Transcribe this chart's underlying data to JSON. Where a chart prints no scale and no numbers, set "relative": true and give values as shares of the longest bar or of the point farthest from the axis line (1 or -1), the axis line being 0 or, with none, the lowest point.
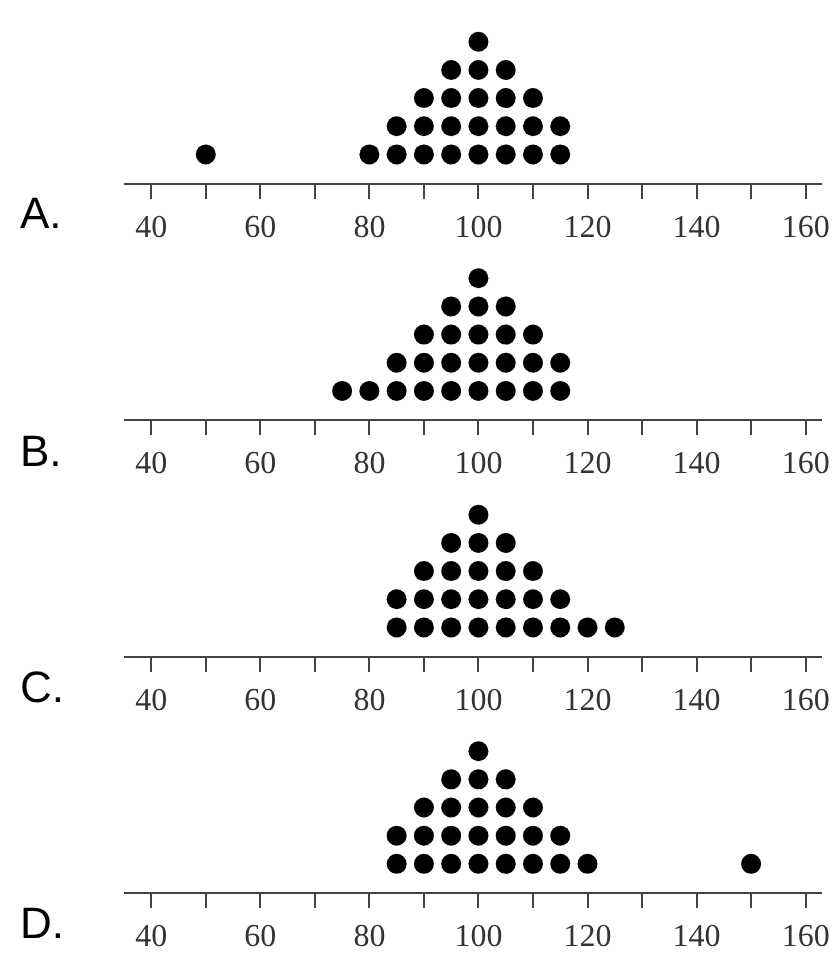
{
  "chart_data": [
    {
      "type": "scatter",
      "title": "A.",
      "relative": true,
      "marker": "circle",
      "tick_labels": "x",
      "xlim": [
        35,
        163
      ],
      "xticks": [
        40,
        {
          "value": 50,
          "label": null
        },
        60,
        {
          "value": 70,
          "label": null
        },
        80,
        {
          "value": 90,
          "label": null
        },
        100,
        {
          "value": 110,
          "label": null
        },
        120,
        {
          "value": 130,
          "label": null
        },
        140,
        {
          "value": 150,
          "label": null
        },
        160
      ],
      "series": [
        {
          "color": "#000000",
          "x": [
            50,
            80,
            85,
            85,
            90,
            90,
            90,
            95,
            95,
            95,
            95,
            100,
            100,
            100,
            100,
            100,
            105,
            105,
            105,
            105,
            110,
            110,
            110,
            115,
            115
          ],
          "values": [
            0.2,
            0.2,
            0.2,
            0.4,
            0.2,
            0.4,
            0.6,
            0.2,
            0.4,
            0.6,
            0.8,
            0.2,
            0.4,
            0.6,
            0.8,
            1,
            0.2,
            0.4,
            0.6,
            0.8,
            0.2,
            0.4,
            0.6,
            0.2,
            0.4
          ]
        }
      ]
    },
    {
      "type": "scatter",
      "title": "B.",
      "relative": true,
      "marker": "circle",
      "tick_labels": "x",
      "xlim": [
        35,
        163
      ],
      "xticks": [
        40,
        {
          "value": 50,
          "label": null
        },
        60,
        {
          "value": 70,
          "label": null
        },
        80,
        {
          "value": 90,
          "label": null
        },
        100,
        {
          "value": 110,
          "label": null
        },
        120,
        {
          "value": 130,
          "label": null
        },
        140,
        {
          "value": 150,
          "label": null
        },
        160
      ],
      "series": [
        {
          "color": "#000000",
          "x": [
            75,
            80,
            85,
            85,
            90,
            90,
            90,
            95,
            95,
            95,
            95,
            100,
            100,
            100,
            100,
            100,
            105,
            105,
            105,
            105,
            110,
            110,
            110,
            115,
            115
          ],
          "values": [
            0.2,
            0.2,
            0.2,
            0.4,
            0.2,
            0.4,
            0.6,
            0.2,
            0.4,
            0.6,
            0.8,
            0.2,
            0.4,
            0.6,
            0.8,
            1,
            0.2,
            0.4,
            0.6,
            0.8,
            0.2,
            0.4,
            0.6,
            0.2,
            0.4
          ]
        }
      ]
    },
    {
      "type": "scatter",
      "title": "C.",
      "relative": true,
      "marker": "circle",
      "tick_labels": "x",
      "xlim": [
        35,
        163
      ],
      "xticks": [
        40,
        {
          "value": 50,
          "label": null
        },
        60,
        {
          "value": 70,
          "label": null
        },
        80,
        {
          "value": 90,
          "label": null
        },
        100,
        {
          "value": 110,
          "label": null
        },
        120,
        {
          "value": 130,
          "label": null
        },
        140,
        {
          "value": 150,
          "label": null
        },
        160
      ],
      "series": [
        {
          "color": "#000000",
          "x": [
            85,
            85,
            90,
            90,
            90,
            95,
            95,
            95,
            95,
            100,
            100,
            100,
            100,
            100,
            105,
            105,
            105,
            105,
            110,
            110,
            110,
            115,
            115,
            120,
            125
          ],
          "values": [
            0.2,
            0.4,
            0.2,
            0.4,
            0.6,
            0.2,
            0.4,
            0.6,
            0.8,
            0.2,
            0.4,
            0.6,
            0.8,
            1,
            0.2,
            0.4,
            0.6,
            0.8,
            0.2,
            0.4,
            0.6,
            0.2,
            0.4,
            0.2,
            0.2
          ]
        }
      ]
    },
    {
      "type": "scatter",
      "title": "D.",
      "relative": true,
      "marker": "circle",
      "tick_labels": "x",
      "xlim": [
        35,
        163
      ],
      "xticks": [
        40,
        {
          "value": 50,
          "label": null
        },
        60,
        {
          "value": 70,
          "label": null
        },
        80,
        {
          "value": 90,
          "label": null
        },
        100,
        {
          "value": 110,
          "label": null
        },
        120,
        {
          "value": 130,
          "label": null
        },
        140,
        {
          "value": 150,
          "label": null
        },
        160
      ],
      "series": [
        {
          "color": "#000000",
          "x": [
            85,
            85,
            90,
            90,
            90,
            95,
            95,
            95,
            95,
            100,
            100,
            100,
            100,
            100,
            105,
            105,
            105,
            105,
            110,
            110,
            110,
            115,
            115,
            120,
            150
          ],
          "values": [
            0.2,
            0.4,
            0.2,
            0.4,
            0.6,
            0.2,
            0.4,
            0.6,
            0.8,
            0.2,
            0.4,
            0.6,
            0.8,
            1,
            0.2,
            0.4,
            0.6,
            0.8,
            0.2,
            0.4,
            0.6,
            0.2,
            0.4,
            0.2,
            0.2
          ]
        }
      ]
    }
  ]
}
